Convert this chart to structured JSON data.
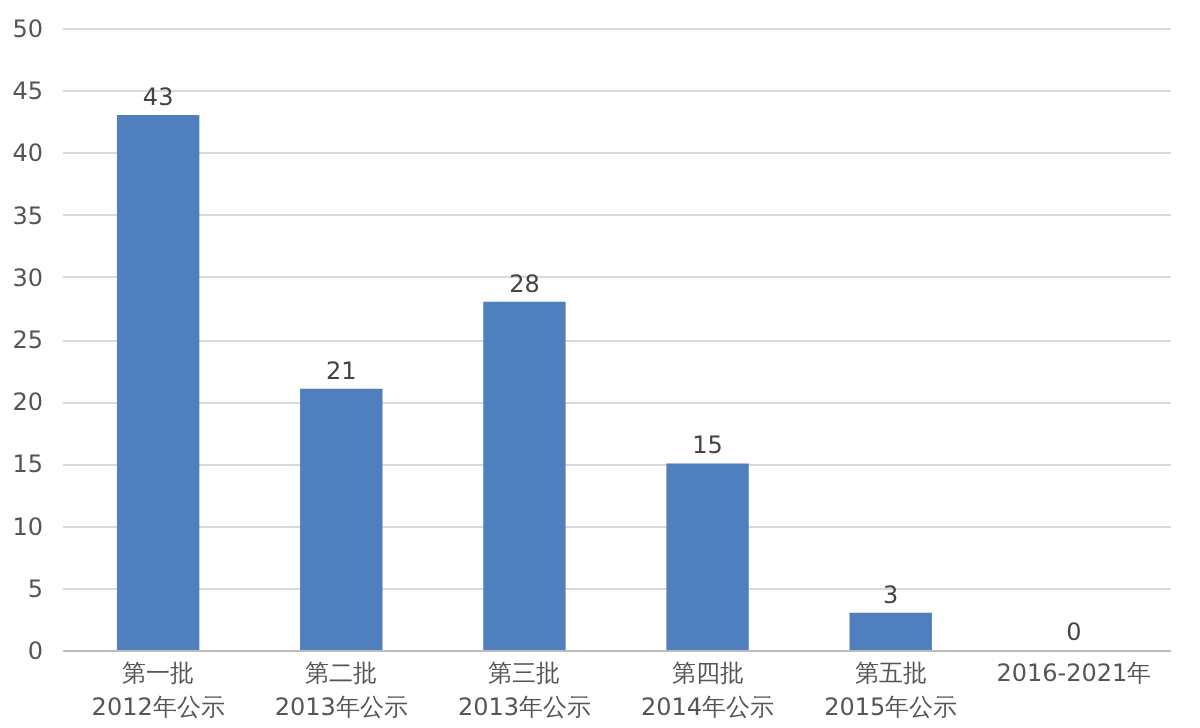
{
  "chart_data": {
    "type": "bar",
    "categories": [
      "第一批\n2012年公示",
      "第二批\n2013年公示",
      "第三批\n2013年公示",
      "第四批\n2014年公示",
      "第五批\n2015年公示",
      "2016-2021年"
    ],
    "values": [
      43,
      21,
      28,
      15,
      3,
      0
    ],
    "color": "#4f7fbd",
    "ylim": [
      0,
      50
    ],
    "yticks": [
      0,
      5,
      10,
      15,
      20,
      25,
      30,
      35,
      40,
      45,
      50
    ],
    "grid": "y",
    "data_labels": true
  }
}
